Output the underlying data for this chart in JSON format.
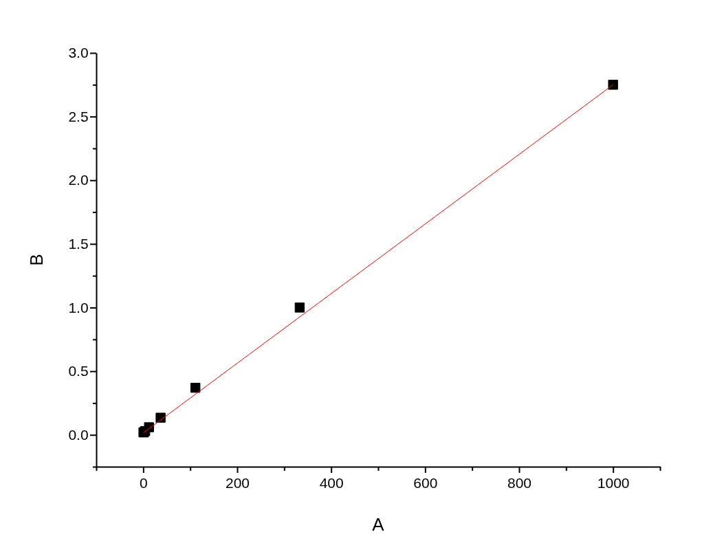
{
  "chart_data": {
    "type": "scatter",
    "xlabel": "A",
    "ylabel": "B",
    "grid": false,
    "xlim": [
      -100,
      1100
    ],
    "xticks": [
      {
        "value": -100,
        "label": null
      },
      0,
      {
        "value": 100,
        "label": null
      },
      200,
      {
        "value": 300,
        "label": null
      },
      400,
      {
        "value": 500,
        "label": null
      },
      600,
      {
        "value": 700,
        "label": null
      },
      800,
      {
        "value": 900,
        "label": null
      },
      1000,
      {
        "value": 1100,
        "label": null
      }
    ],
    "ylim": [
      -0.25,
      3.0
    ],
    "yticks": [
      {
        "value": -0.25,
        "label": null
      },
      {
        "value": 0,
        "label": "0.0"
      },
      {
        "value": 0.25,
        "label": null
      },
      0.5,
      {
        "value": 0.75,
        "label": null
      },
      {
        "value": 1,
        "label": "1.0"
      },
      {
        "value": 1.25,
        "label": null
      },
      1.5,
      {
        "value": 1.75,
        "label": null
      },
      {
        "value": 2,
        "label": "2.0"
      },
      {
        "value": 2.25,
        "label": null
      },
      2.5,
      {
        "value": 2.75,
        "label": null
      },
      {
        "value": 3,
        "label": "3.0"
      }
    ],
    "series": [
      {
        "marker": "square",
        "color": "#000000",
        "x": [
          0.46,
          1.37,
          4.1,
          12.3,
          37,
          111,
          333,
          1000
        ],
        "values": [
          0.02,
          0.02,
          0.03,
          0.06,
          0.135,
          0.37,
          1.0,
          2.75
        ]
      },
      {
        "type": "line",
        "color": "#ff0000",
        "x": [
          0.46,
          1000
        ],
        "values": [
          0.017,
          2.75
        ]
      }
    ]
  }
}
